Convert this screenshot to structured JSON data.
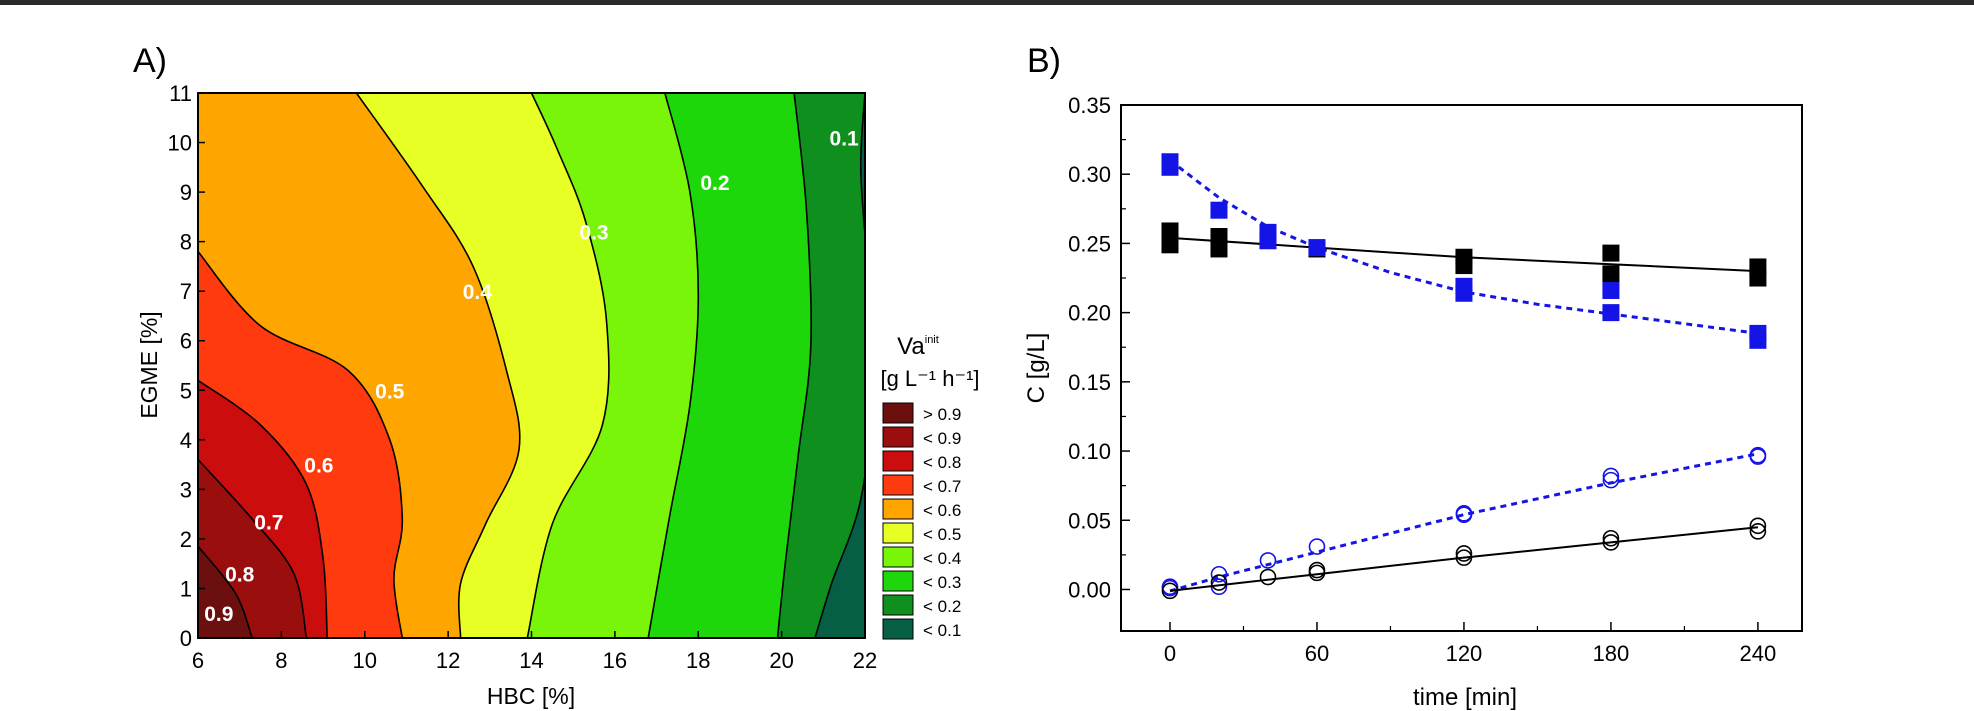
{
  "chart_data": [
    {
      "panel_label": "A)",
      "type": "heatmap",
      "xlabel": "HBC [%]",
      "ylabel": "EGME [%]",
      "xlim": [
        6,
        22
      ],
      "ylim": [
        0,
        11
      ],
      "xticks": [
        6,
        8,
        10,
        12,
        14,
        16,
        18,
        20,
        22
      ],
      "yticks": [
        0,
        1,
        2,
        3,
        4,
        5,
        6,
        7,
        8,
        9,
        10,
        11
      ],
      "legend_title": "Va",
      "legend_title_superscript": "init",
      "legend_unit": "[g L⁻¹ h⁻¹]",
      "legend_placement": "right",
      "legend": [
        {
          "label": "> 0.9",
          "color": "#6b0f0f"
        },
        {
          "label": "< 0.9",
          "color": "#9a0e0e"
        },
        {
          "label": "< 0.8",
          "color": "#cc0d0d"
        },
        {
          "label": "< 0.7",
          "color": "#ff3a0f"
        },
        {
          "label": "< 0.6",
          "color": "#ffa500"
        },
        {
          "label": "< 0.5",
          "color": "#e8ff25"
        },
        {
          "label": "< 0.4",
          "color": "#79f50a"
        },
        {
          "label": "< 0.3",
          "color": "#1ed70a"
        },
        {
          "label": "< 0.2",
          "color": "#0e8f1e"
        },
        {
          "label": "< 0.1",
          "color": "#065e45"
        }
      ],
      "contour_labels": [
        {
          "text": "0.9",
          "x": 6.5,
          "y": 0.5,
          "color": "#ffffff"
        },
        {
          "text": "0.8",
          "x": 7.0,
          "y": 1.3,
          "color": "#ffffff"
        },
        {
          "text": "0.7",
          "x": 7.7,
          "y": 2.35,
          "color": "#ffffff"
        },
        {
          "text": "0.6",
          "x": 8.9,
          "y": 3.5,
          "color": "#ffffff"
        },
        {
          "text": "0.5",
          "x": 10.6,
          "y": 5.0,
          "color": "#ffffff"
        },
        {
          "text": "0.4",
          "x": 12.7,
          "y": 7.0,
          "color": "#ffffff"
        },
        {
          "text": "0.3",
          "x": 15.5,
          "y": 8.2,
          "color": "#ffffff"
        },
        {
          "text": "0.2",
          "x": 18.4,
          "y": 9.2,
          "color": "#ffffff"
        },
        {
          "text": "0.1",
          "x": 21.5,
          "y": 10.1,
          "color": "#ffffff"
        }
      ],
      "boundaries": [
        {
          "level": 0.9,
          "points": [
            [
              6.0,
              1.85
            ],
            [
              6.9,
              0.9
            ],
            [
              7.3,
              0.0
            ]
          ]
        },
        {
          "level": 0.8,
          "points": [
            [
              6.0,
              3.6
            ],
            [
              7.3,
              2.4
            ],
            [
              8.3,
              1.3
            ],
            [
              8.6,
              0.0
            ]
          ]
        },
        {
          "level": 0.7,
          "points": [
            [
              6.0,
              5.2
            ],
            [
              7.5,
              4.3
            ],
            [
              8.6,
              3.1
            ],
            [
              9.0,
              1.6
            ],
            [
              9.1,
              0.0
            ]
          ]
        },
        {
          "level": 0.6,
          "points": [
            [
              6.0,
              7.8
            ],
            [
              7.5,
              6.3
            ],
            [
              9.6,
              5.4
            ],
            [
              10.6,
              4.0
            ],
            [
              10.9,
              2.4
            ],
            [
              10.7,
              1.2
            ],
            [
              10.9,
              0.0
            ]
          ]
        },
        {
          "level": 0.5,
          "points": [
            [
              9.8,
              11.0
            ],
            [
              11.4,
              9.1
            ],
            [
              12.6,
              7.5
            ],
            [
              13.4,
              5.4
            ],
            [
              13.7,
              3.8
            ],
            [
              12.9,
              2.3
            ],
            [
              12.3,
              1.1
            ],
            [
              12.3,
              0.0
            ]
          ]
        },
        {
          "level": 0.4,
          "points": [
            [
              14.0,
              11.0
            ],
            [
              14.6,
              9.9
            ],
            [
              15.3,
              8.4
            ],
            [
              15.8,
              6.4
            ],
            [
              15.7,
              4.3
            ],
            [
              14.5,
              2.3
            ],
            [
              13.9,
              0.0
            ]
          ]
        },
        {
          "level": 0.3,
          "points": [
            [
              17.2,
              11.0
            ],
            [
              17.8,
              9.0
            ],
            [
              18.0,
              6.9
            ],
            [
              17.8,
              4.7
            ],
            [
              17.3,
              2.4
            ],
            [
              16.8,
              0.0
            ]
          ]
        },
        {
          "level": 0.2,
          "points": [
            [
              20.3,
              11.0
            ],
            [
              20.6,
              8.6
            ],
            [
              20.7,
              5.9
            ],
            [
              20.4,
              3.7
            ],
            [
              20.1,
              1.6
            ],
            [
              19.9,
              0.0
            ]
          ]
        },
        {
          "level": 0.1,
          "points": [
            [
              22.0,
              11.0
            ],
            [
              21.9,
              9.4
            ],
            [
              22.1,
              7.1
            ],
            [
              22.2,
              5.1
            ],
            [
              21.9,
              2.8
            ],
            [
              21.2,
              1.1
            ],
            [
              20.8,
              0.0
            ]
          ]
        }
      ]
    },
    {
      "panel_label": "B)",
      "type": "scatter",
      "xlabel": "time [min]",
      "ylabel": "C [g/L]",
      "xlim": [
        -20,
        258
      ],
      "ylim": [
        -0.03,
        0.35
      ],
      "xticks": [
        0,
        60,
        120,
        180,
        240
      ],
      "yticks": [
        "0.00",
        "0.05",
        "0.10",
        "0.15",
        "0.20",
        "0.25",
        "0.30",
        "0.35"
      ],
      "grid": false,
      "series": [
        {
          "marker": "square",
          "color": "#000000",
          "points": [
            [
              0,
              0.259
            ],
            [
              0,
              0.249
            ],
            [
              20,
              0.255
            ],
            [
              20,
              0.246
            ],
            [
              40,
              0.252
            ],
            [
              60,
              0.246
            ],
            [
              120,
              0.24
            ],
            [
              120,
              0.234
            ],
            [
              180,
              0.243
            ],
            [
              180,
              0.228
            ],
            [
              240,
              0.233
            ],
            [
              240,
              0.225
            ]
          ],
          "fit": {
            "style": "solid",
            "points": [
              [
                0,
                0.254
              ],
              [
                60,
                0.247
              ],
              [
                120,
                0.24
              ],
              [
                180,
                0.235
              ],
              [
                240,
                0.23
              ]
            ]
          }
        },
        {
          "marker": "square",
          "color": "#1414e6",
          "points": [
            [
              0,
              0.309
            ],
            [
              0,
              0.305
            ],
            [
              20,
              0.274
            ],
            [
              40,
              0.258
            ],
            [
              40,
              0.252
            ],
            [
              60,
              0.247
            ],
            [
              120,
              0.219
            ],
            [
              120,
              0.214
            ],
            [
              180,
              0.216
            ],
            [
              180,
              0.2
            ],
            [
              240,
              0.185
            ],
            [
              240,
              0.18
            ]
          ],
          "fit": {
            "style": "dashed",
            "points": [
              [
                0,
                0.31
              ],
              [
                20,
                0.283
              ],
              [
                40,
                0.262
              ],
              [
                60,
                0.247
              ],
              [
                90,
                0.229
              ],
              [
                120,
                0.215
              ],
              [
                150,
                0.206
              ],
              [
                180,
                0.199
              ],
              [
                210,
                0.192
              ],
              [
                240,
                0.185
              ]
            ]
          }
        },
        {
          "marker": "circle-open",
          "color": "#1414e6",
          "points": [
            [
              0,
              0.002
            ],
            [
              0,
              0.001
            ],
            [
              20,
              0.011
            ],
            [
              20,
              0.002
            ],
            [
              40,
              0.021
            ],
            [
              60,
              0.031
            ],
            [
              120,
              0.055
            ],
            [
              120,
              0.054
            ],
            [
              180,
              0.082
            ],
            [
              180,
              0.079
            ],
            [
              240,
              0.097
            ],
            [
              240,
              0.096
            ]
          ],
          "fit": {
            "style": "dashed",
            "points": [
              [
                0,
                -0.001
              ],
              [
                20,
                0.009
              ],
              [
                40,
                0.018
              ],
              [
                60,
                0.027
              ],
              [
                120,
                0.054
              ],
              [
                180,
                0.077
              ],
              [
                240,
                0.098
              ]
            ]
          }
        },
        {
          "marker": "circle-open",
          "color": "#000000",
          "points": [
            [
              0,
              -0.001
            ],
            [
              20,
              0.005
            ],
            [
              40,
              0.009
            ],
            [
              60,
              0.014
            ],
            [
              60,
              0.012
            ],
            [
              120,
              0.026
            ],
            [
              120,
              0.023
            ],
            [
              180,
              0.037
            ],
            [
              180,
              0.034
            ],
            [
              240,
              0.046
            ],
            [
              240,
              0.042
            ]
          ],
          "fit": {
            "style": "solid",
            "points": [
              [
                0,
                -0.001
              ],
              [
                60,
                0.011
              ],
              [
                120,
                0.023
              ],
              [
                180,
                0.034
              ],
              [
                240,
                0.045
              ]
            ]
          }
        }
      ]
    }
  ]
}
